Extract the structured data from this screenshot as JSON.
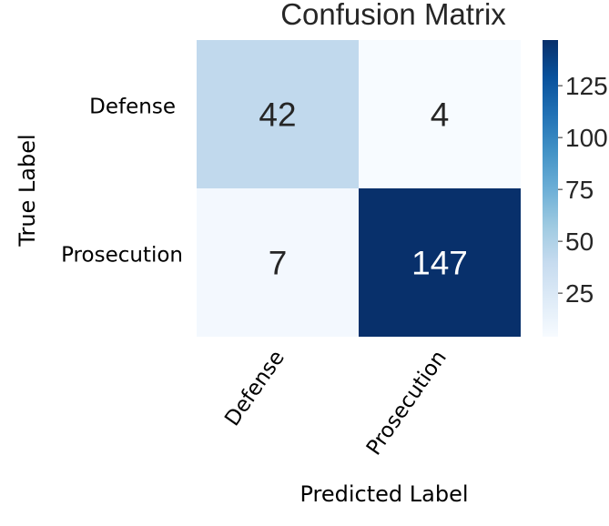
{
  "chart_data": {
    "type": "heatmap",
    "title": "Confusion Matrix",
    "xlabel": "Predicted Label",
    "ylabel": "True Label",
    "x_categories": [
      "Defense",
      "Prosecution"
    ],
    "y_categories": [
      "Defense",
      "Prosecution"
    ],
    "values": [
      [
        42,
        4
      ],
      [
        7,
        147
      ]
    ],
    "colormap": "Blues",
    "colorbar": {
      "min": 4,
      "max": 147,
      "ticks": [
        "25",
        "50",
        "75",
        "100",
        "125"
      ]
    },
    "colors": {
      "low": "#f7fbff",
      "high": "#08306b"
    }
  }
}
